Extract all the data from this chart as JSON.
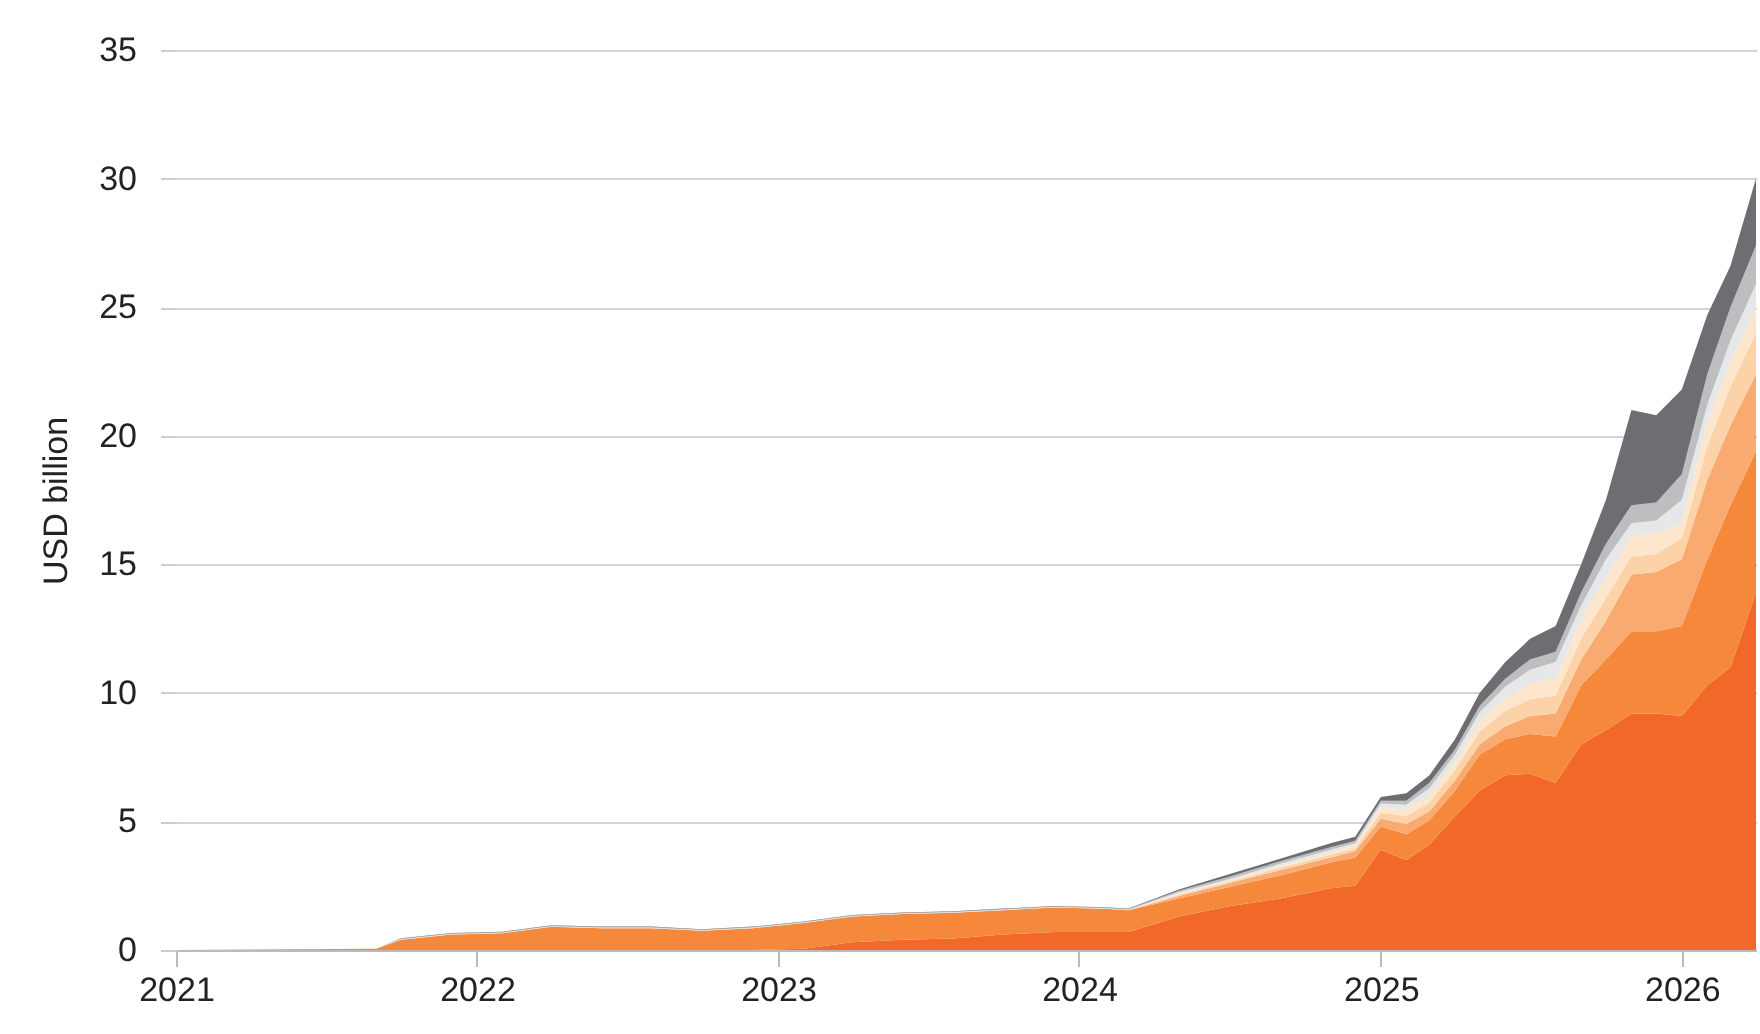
{
  "chart_data": {
    "type": "area",
    "stacked": true,
    "ylabel": "USD billion",
    "x": [
      "2021-01",
      "2021-09",
      "2021-10",
      "2021-12",
      "2022-02",
      "2022-04",
      "2022-06",
      "2022-08",
      "2022-10",
      "2022-12",
      "2023-02",
      "2023-04",
      "2023-06",
      "2023-08",
      "2023-10",
      "2023-12",
      "2024-02",
      "2024-03",
      "2024-05",
      "2024-07",
      "2024-09",
      "2024-11",
      "2024-12",
      "2025-01",
      "2025-02",
      "2025-03",
      "2025-04",
      "2025-05",
      "2025-06",
      "2025-07",
      "2025-08",
      "2025-09",
      "2025-10",
      "2025-11",
      "2025-12",
      "2026-01",
      "2026-02",
      "2026-03",
      "2026-04"
    ],
    "series": [
      {
        "color": "#f26829",
        "values": [
          0,
          0,
          0,
          0,
          0,
          0,
          0,
          0,
          0,
          0,
          0.05,
          0.3,
          0.4,
          0.45,
          0.6,
          0.7,
          0.7,
          0.7,
          1.3,
          1.7,
          2.0,
          2.4,
          2.5,
          3.9,
          3.5,
          4.1,
          5.2,
          6.2,
          6.8,
          6.85,
          6.5,
          8.0,
          8.55,
          9.2,
          9.2,
          9.1,
          10.3,
          11.0,
          13.9
        ]
      },
      {
        "color": "#f5883b",
        "values": [
          0,
          0.05,
          0.4,
          0.6,
          0.65,
          0.9,
          0.85,
          0.85,
          0.75,
          0.85,
          1.0,
          1.0,
          1.0,
          1.0,
          0.95,
          0.95,
          0.9,
          0.85,
          0.7,
          0.75,
          0.9,
          1.0,
          1.1,
          0.9,
          1.0,
          0.95,
          1.0,
          1.4,
          1.4,
          1.55,
          1.8,
          2.3,
          2.75,
          3.2,
          3.2,
          3.5,
          4.9,
          6.3,
          5.5
        ]
      },
      {
        "color": "#f8aa70",
        "values": [
          0,
          0,
          0,
          0,
          0,
          0,
          0,
          0,
          0,
          0,
          0,
          0,
          0,
          0,
          0,
          0,
          0,
          0,
          0.1,
          0.15,
          0.2,
          0.2,
          0.25,
          0.3,
          0.4,
          0.35,
          0.4,
          0.4,
          0.5,
          0.7,
          0.9,
          1.0,
          1.5,
          2.2,
          2.3,
          2.6,
          3.1,
          3.1,
          3.0
        ]
      },
      {
        "color": "#fcd2a8",
        "values": [
          0,
          0,
          0,
          0,
          0,
          0,
          0,
          0,
          0,
          0,
          0,
          0,
          0,
          0,
          0,
          0,
          0,
          0,
          0.05,
          0.05,
          0.1,
          0.1,
          0.1,
          0.25,
          0.3,
          0.35,
          0.4,
          0.5,
          0.6,
          0.65,
          0.7,
          0.8,
          0.9,
          0.7,
          0.7,
          0.8,
          1.3,
          1.5,
          1.6
        ]
      },
      {
        "color": "#fde6cc",
        "values": [
          0,
          0,
          0,
          0,
          0,
          0,
          0,
          0,
          0,
          0,
          0,
          0,
          0,
          0,
          0,
          0,
          0,
          0,
          0.05,
          0.05,
          0.05,
          0.1,
          0.1,
          0.2,
          0.25,
          0.3,
          0.3,
          0.4,
          0.5,
          0.6,
          0.7,
          0.7,
          0.8,
          0.8,
          0.8,
          0.6,
          0.9,
          1.0,
          1.0
        ]
      },
      {
        "color": "#e6e7e8",
        "values": [
          0,
          0,
          0.02,
          0.02,
          0.02,
          0.02,
          0.02,
          0.02,
          0.02,
          0.02,
          0.02,
          0.02,
          0.02,
          0.02,
          0.02,
          0.02,
          0.02,
          0.02,
          0.05,
          0.05,
          0.1,
          0.1,
          0.1,
          0.15,
          0.2,
          0.25,
          0.3,
          0.35,
          0.45,
          0.55,
          0.6,
          0.6,
          0.7,
          0.5,
          0.5,
          0.9,
          0.7,
          0.8,
          0.9
        ]
      },
      {
        "color": "#bcbec0",
        "values": [
          0,
          0,
          0.02,
          0.02,
          0.02,
          0.02,
          0.02,
          0.02,
          0.02,
          0.02,
          0.02,
          0.02,
          0.02,
          0.02,
          0.02,
          0.02,
          0.02,
          0.02,
          0.05,
          0.1,
          0.1,
          0.1,
          0.1,
          0.1,
          0.15,
          0.2,
          0.2,
          0.25,
          0.3,
          0.4,
          0.4,
          0.5,
          0.6,
          0.7,
          0.7,
          1.0,
          1.2,
          1.3,
          1.5
        ]
      },
      {
        "color": "#6d6e71",
        "values": [
          0,
          0,
          0.02,
          0.02,
          0.02,
          0.02,
          0.02,
          0.02,
          0.02,
          0.02,
          0.02,
          0.02,
          0.02,
          0.02,
          0.02,
          0.02,
          0.02,
          0.02,
          0.05,
          0.1,
          0.1,
          0.15,
          0.15,
          0.15,
          0.3,
          0.3,
          0.4,
          0.5,
          0.65,
          0.8,
          1.0,
          1.1,
          1.7,
          3.7,
          3.4,
          3.3,
          2.3,
          1.6,
          2.6
        ]
      }
    ],
    "xlim": [
      "2021-01",
      "2026-04"
    ],
    "xticks": [
      "2021",
      "2022",
      "2023",
      "2024",
      "2025",
      "2026"
    ],
    "ylim": [
      0,
      35
    ],
    "yticks": [
      0,
      5,
      10,
      15,
      20,
      25,
      30,
      35
    ],
    "grid": "y",
    "legend": false
  }
}
